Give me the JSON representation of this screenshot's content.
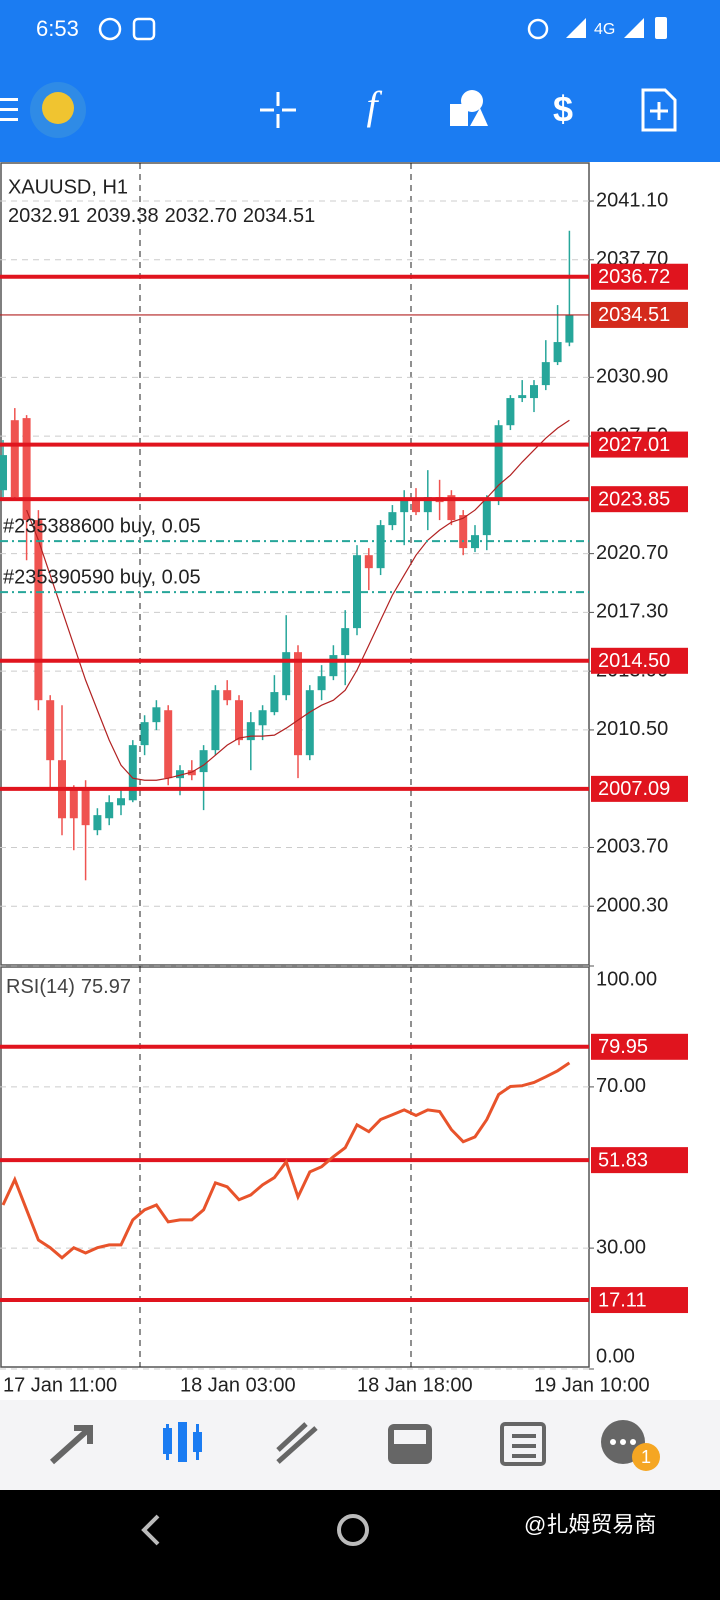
{
  "status_bar": {
    "time": "6:53",
    "network": "4G"
  },
  "notification_badge": "1",
  "watermark": "@扎姆贸易商",
  "chart_data": [
    {
      "type": "candlestick",
      "title": "XAUUSD, H1",
      "last_bar_labels": [
        "2032.91",
        "2039.38",
        "2032.70",
        "2034.51"
      ],
      "categories": [
        "17 Jan 11:00",
        null,
        null,
        null,
        null,
        null,
        null,
        null,
        null,
        null,
        null,
        null,
        null,
        null,
        null,
        "18 Jan 03:00",
        null,
        null,
        null,
        null,
        null,
        null,
        null,
        null,
        null,
        null,
        null,
        null,
        null,
        null,
        "18 Jan 18:00",
        null,
        null,
        null,
        null,
        null,
        null,
        null,
        null,
        null,
        null,
        null,
        null,
        null,
        null,
        "19 Jan 10:00",
        null,
        null,
        null
      ],
      "open": [
        2024.37,
        2028.42,
        2028.54,
        2022.64,
        2012.22,
        2008.75,
        2007.01,
        2007.01,
        2004.7,
        2005.39,
        2006.14,
        2006.43,
        2009.62,
        2010.95,
        2011.64,
        2007.71,
        2008.17,
        2008.06,
        2009.33,
        2012.8,
        2012.22,
        2009.91,
        2010.77,
        2011.53,
        2012.51,
        2015.0,
        2009.04,
        2012.8,
        2013.61,
        2014.83,
        2016.39,
        2020.61,
        2019.86,
        2022.35,
        2023.1,
        2023.8,
        2023.1,
        2023.97,
        2024.08,
        2022.93,
        2021.02,
        2021.77,
        2023.8,
        2028.13,
        2029.7,
        2029.7,
        2030.45,
        2031.78,
        2032.91
      ],
      "high": [
        2027.27,
        2029.12,
        2028.71,
        2023.22,
        2012.51,
        2011.93,
        2007.3,
        2007.59,
        2005.97,
        2006.72,
        2007.01,
        2009.91,
        2011.35,
        2012.22,
        2011.93,
        2008.46,
        2008.75,
        2009.62,
        2013.09,
        2013.38,
        2012.51,
        2011.53,
        2011.93,
        2013.67,
        2017.14,
        2015.4,
        2013.09,
        2014.25,
        2015.4,
        2017.43,
        2021.19,
        2021.02,
        2022.64,
        2023.51,
        2024.37,
        2024.49,
        2025.53,
        2024.97,
        2024.37,
        2023.22,
        2022.35,
        2024.08,
        2028.42,
        2029.87,
        2030.74,
        2030.74,
        2033.05,
        2035.08,
        2039.38
      ],
      "low": [
        2023.97,
        2023.8,
        2020.32,
        2011.64,
        2007.01,
        2004.41,
        2003.54,
        2001.8,
        2004.41,
        2004.99,
        2005.57,
        2006.32,
        2009.04,
        2010.49,
        2007.3,
        2006.72,
        2007.59,
        2005.86,
        2009.04,
        2011.93,
        2009.62,
        2008.17,
        2009.91,
        2011.35,
        2012.22,
        2007.71,
        2008.75,
        2012.22,
        2013.38,
        2013.09,
        2015.98,
        2018.59,
        2019.46,
        2022.06,
        2021.19,
        2022.93,
        2022.06,
        2022.64,
        2022.35,
        2020.61,
        2020.79,
        2020.9,
        2023.51,
        2027.85,
        2029.47,
        2028.89,
        2030.16,
        2031.61,
        2032.7
      ],
      "close": [
        2026.4,
        2023.97,
        2022.64,
        2012.22,
        2008.75,
        2005.39,
        2005.39,
        2004.99,
        2005.57,
        2006.32,
        2006.55,
        2009.62,
        2010.95,
        2011.81,
        2007.71,
        2008.17,
        2007.88,
        2009.33,
        2012.8,
        2012.22,
        2009.91,
        2010.95,
        2011.64,
        2012.69,
        2015.0,
        2009.04,
        2012.8,
        2013.61,
        2014.83,
        2016.39,
        2020.61,
        2019.86,
        2022.35,
        2023.1,
        2023.8,
        2023.1,
        2023.97,
        2023.68,
        2022.64,
        2021.02,
        2021.77,
        2023.8,
        2028.13,
        2029.7,
        2029.87,
        2030.45,
        2031.78,
        2032.94,
        2034.51
      ],
      "ma": [
        null,
        null,
        2023.22,
        2021.48,
        2019.46,
        2017.43,
        2015.4,
        2013.38,
        2011.64,
        2009.91,
        2008.46,
        2007.71,
        2007.59,
        2007.59,
        2007.71,
        2007.88,
        2008.06,
        2008.46,
        2009.04,
        2009.62,
        2010.03,
        2010.14,
        2010.14,
        2010.2,
        2010.6,
        2011.07,
        2011.53,
        2011.93,
        2012.22,
        2012.8,
        2013.96,
        2015.4,
        2016.85,
        2018.3,
        2019.46,
        2020.61,
        2021.48,
        2022.06,
        2022.52,
        2022.75,
        2023.22,
        2023.92,
        2024.66,
        2025.24,
        2026.0,
        2026.69,
        2027.38,
        2027.96,
        2028.42
      ],
      "up_color": "#26a69a",
      "down_color": "#ef5350",
      "ma_color": "#b22222",
      "level_color": "#e0141e",
      "levels": [
        {
          "value": 2036.72,
          "label": "2036.72"
        },
        {
          "value": 2027.01,
          "label": "2027.01"
        },
        {
          "value": 2023.85,
          "label": "2023.85"
        },
        {
          "value": 2014.5,
          "label": "2014.50"
        },
        {
          "value": 2007.09,
          "label": "2007.09"
        }
      ],
      "orders": [
        {
          "label": "#235388600 buy, 0.05",
          "price": 2021.42
        },
        {
          "label": "#235390590 buy, 0.05",
          "price": 2018.47
        }
      ],
      "ylim": [
        1996.9,
        2043.3
      ],
      "yticks": [
        {
          "value": 2041.1,
          "label": "2041.10"
        },
        {
          "value": 2037.7,
          "label": "2037.70"
        },
        {
          "value": 2030.9,
          "label": "2030.90"
        },
        {
          "value": 2027.5,
          "label": "2027.50"
        },
        {
          "value": 2020.7,
          "label": "2020.70"
        },
        {
          "value": 2017.3,
          "label": "2017.30"
        },
        {
          "value": 2013.9,
          "label": "2013.90"
        },
        {
          "value": 2010.5,
          "label": "2010.50"
        },
        {
          "value": 2003.7,
          "label": "2003.70"
        },
        {
          "value": 2000.3,
          "label": "2000.30"
        }
      ],
      "grid": true
    },
    {
      "type": "line",
      "title": "RSI(14)",
      "series": [
        {
          "color": "#e8532b",
          "values": [
            40.7,
            47.0,
            39.5,
            32.0,
            30.1,
            27.6,
            30.1,
            28.8,
            30.1,
            30.8,
            30.8,
            37.0,
            39.5,
            40.7,
            36.5,
            37.0,
            37.0,
            39.5,
            46.2,
            45.2,
            42.0,
            43.2,
            45.7,
            47.5,
            51.4,
            42.7,
            48.9,
            50.2,
            52.7,
            54.9,
            60.6,
            58.9,
            61.9,
            63.1,
            64.3,
            62.9,
            64.3,
            63.9,
            59.4,
            56.4,
            57.6,
            61.9,
            68.1,
            70.1,
            70.3,
            71.1,
            72.5,
            74.0,
            75.97
          ]
        }
      ],
      "level_color": "#e0141e",
      "levels": [
        {
          "value": 79.95,
          "label": "79.95"
        },
        {
          "value": 51.83,
          "label": "51.83"
        },
        {
          "value": 17.11,
          "label": "17.11"
        }
      ],
      "ylim": [
        0,
        100
      ],
      "yticks": [
        {
          "value": 100,
          "label": "100.00"
        },
        {
          "value": 70,
          "label": "70.00"
        },
        {
          "value": 30,
          "label": "30.00"
        },
        {
          "value": 0,
          "label": "0.00"
        }
      ],
      "grid": true
    }
  ]
}
